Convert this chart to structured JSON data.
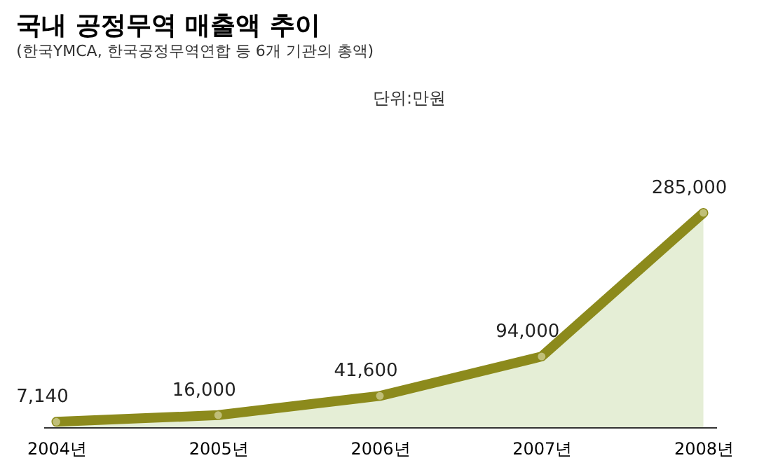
{
  "chart_data": {
    "type": "area",
    "title": "국내 공정무역 매출액 추이",
    "subtitle": "(한국YMCA, 한국공정무역연합 등 6개 기관의 총액)",
    "annotations": [
      "단위:만원"
    ],
    "categories": [
      "2004년",
      "2005년",
      "2006년",
      "2007년",
      "2008년"
    ],
    "series": [
      {
        "color": "#8c8a1c",
        "values": [
          7140,
          16000,
          41600,
          94000,
          285000
        ],
        "value_labels": [
          "7,140",
          "16,000",
          "41,600",
          "94,000",
          "285,000"
        ]
      }
    ],
    "marker": "circle",
    "line_style": "solid"
  }
}
